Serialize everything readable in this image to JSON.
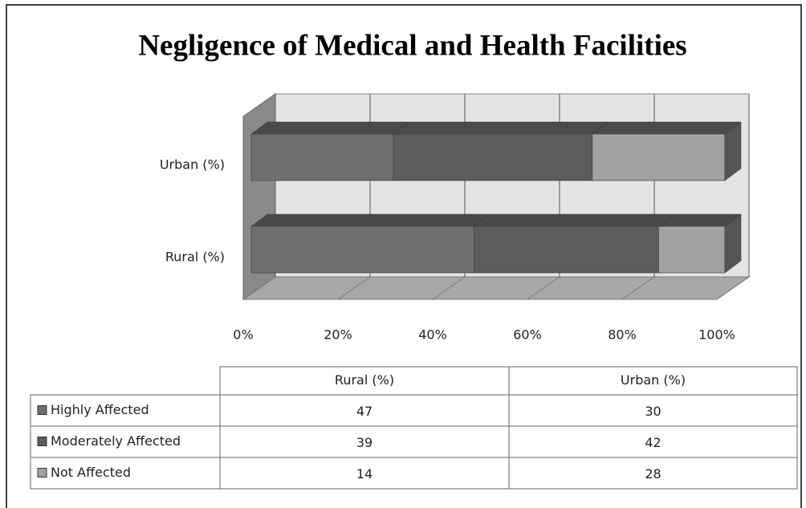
{
  "chart_data": {
    "type": "stacked-bar-3d",
    "title": "Negligence of Medical and Health Facilities",
    "categories": [
      "Rural (%)",
      "Urban (%)"
    ],
    "series": [
      {
        "name": "Highly Affected",
        "color": "#6e6e6e",
        "values": [
          47,
          30
        ]
      },
      {
        "name": "Moderately Affected",
        "color": "#5c5c5c",
        "values": [
          39,
          42
        ]
      },
      {
        "name": "Not Affected",
        "color": "#a2a2a2",
        "values": [
          14,
          28
        ]
      }
    ],
    "xlim": [
      0,
      100
    ],
    "xticks": [
      {
        "value": 0,
        "label": "0%"
      },
      {
        "value": 20,
        "label": "20%"
      },
      {
        "value": 40,
        "label": "40%"
      },
      {
        "value": 60,
        "label": "60%"
      },
      {
        "value": 80,
        "label": "80%"
      },
      {
        "value": 100,
        "label": "100%"
      }
    ],
    "grid": true
  }
}
